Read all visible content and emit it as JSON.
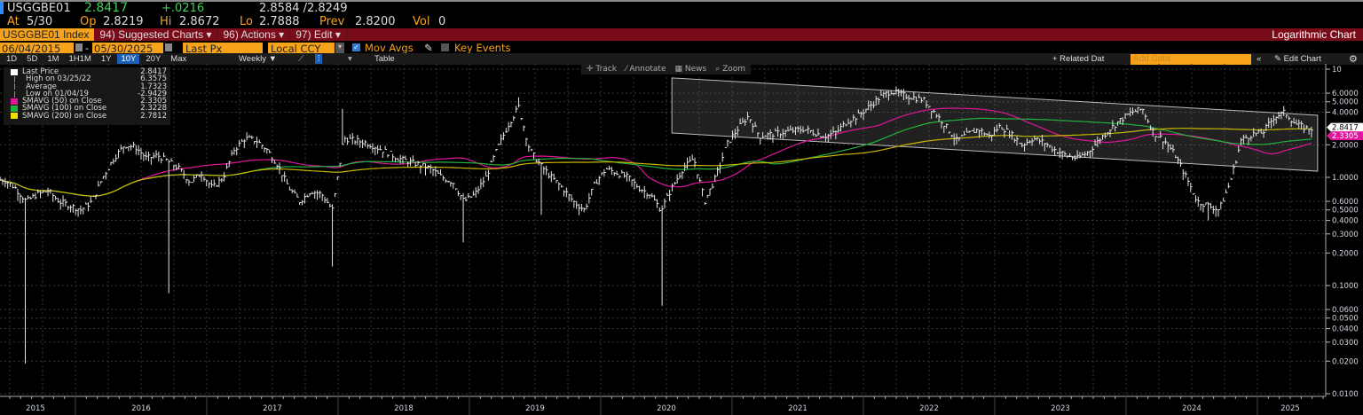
{
  "header": {
    "ticker": "USGGBE01",
    "last": "2.8417",
    "change": "+.0216",
    "bid_ask": "2.8584 /2.8249",
    "at_label": "At",
    "at_date": "5/30",
    "op_label": "Op",
    "op": "2.8219",
    "hi_label": "Hi",
    "hi": "2.8672",
    "lo_label": "Lo",
    "lo": "2.7888",
    "prev_label": "Prev",
    "prev": "2.8200",
    "vol_label": "Vol",
    "vol": "0"
  },
  "menubar": {
    "security": "USGGBE01 Index",
    "suggested": "94) Suggested Charts ▾",
    "actions": "96) Actions ▾",
    "edit": "97) Edit ▾",
    "chart_mode": "Logarithmic Chart"
  },
  "controls": {
    "start_date": "06/04/2015",
    "end_date": "05/30/2025",
    "separator": "-",
    "field": "Last Px",
    "currency": "Local CCY",
    "mov_avgs": "Mov Avgs",
    "key_events": "Key Events"
  },
  "toolbar": {
    "periods": [
      "1D",
      "5D",
      "1M",
      "1H1M",
      "1Y",
      "10Y",
      "20Y",
      "Max"
    ],
    "selected_period": "10Y",
    "frequency": "Weekly ▼",
    "table": "Table",
    "related": "+ Related Dat",
    "add_data_placeholder": "Add Data",
    "collapse": "«",
    "edit_chart": "✎ Edit Chart",
    "settings_icon": "gear-icon"
  },
  "tools": [
    "✛ Track",
    "⁄ Annotate",
    "▦ News",
    "⌕ Zoom"
  ],
  "legend": [
    {
      "name": "Last Price",
      "value": "2.8417",
      "color": "#ffffff"
    },
    {
      "name": "High on 03/25/22",
      "value": "6.3575",
      "color": ""
    },
    {
      "name": "Average",
      "value": "1.7323",
      "color": ""
    },
    {
      "name": "Low on 01/04/19",
      "value": "-2.9429",
      "color": ""
    },
    {
      "name": "SMAVG (50)  on Close",
      "value": "2.3305",
      "color": "#e0169a"
    },
    {
      "name": "SMAVG (100)  on Close",
      "value": "2.3228",
      "color": "#22b33c"
    },
    {
      "name": "SMAVG (200)  on Close",
      "value": "2.7812",
      "color": "#f0e000"
    }
  ],
  "chart_data": {
    "type": "bar",
    "scale": "log",
    "frequency": "weekly",
    "grid": true,
    "legend_position": "top-left",
    "ylim": [
      0.01,
      10
    ],
    "y_ticks": [
      "10",
      "6.0000",
      "5.0000",
      "4.0000",
      "2.0000",
      "1.0000",
      "0.6000",
      "0.5000",
      "0.4000",
      "0.3000",
      "0.2000",
      "0.1000",
      "0.0600",
      "0.0500",
      "0.0400",
      "0.0300",
      "0.0200",
      "0.0100"
    ],
    "x_ticks": [
      "2015",
      "2016",
      "2017",
      "2018",
      "2019",
      "2020",
      "2021",
      "2022",
      "2023",
      "2024",
      "2025"
    ],
    "monthly_start": "2015-06",
    "monthly_close": [
      0.95,
      0.8,
      0.6,
      0.7,
      0.75,
      0.6,
      0.55,
      0.5,
      0.6,
      1.0,
      1.5,
      2.0,
      1.9,
      1.5,
      1.6,
      1.4,
      1.2,
      0.9,
      1.1,
      0.8,
      1.0,
      1.8,
      2.3,
      2.2,
      1.8,
      1.3,
      0.8,
      0.6,
      0.75,
      0.7,
      0.5,
      2.3,
      2.2,
      2.1,
      1.9,
      1.7,
      1.5,
      1.4,
      1.3,
      1.2,
      1.0,
      0.9,
      0.6,
      0.7,
      1.0,
      1.8,
      3.0,
      4.5,
      1.8,
      1.3,
      1.0,
      0.8,
      0.6,
      0.5,
      0.9,
      1.2,
      1.1,
      1.0,
      0.8,
      0.7,
      0.5,
      0.8,
      1.2,
      1.5,
      0.6,
      1.0,
      2.0,
      2.8,
      3.7,
      2.4,
      2.5,
      2.6,
      2.7,
      2.8,
      2.6,
      2.4,
      2.6,
      3.3,
      3.7,
      4.5,
      5.5,
      6.3,
      5.8,
      5.5,
      5.2,
      4.0,
      3.0,
      2.2,
      2.5,
      2.8,
      2.4,
      3.0,
      2.5,
      2.0,
      2.3,
      2.1,
      1.8,
      1.6,
      1.5,
      1.7,
      2.2,
      2.8,
      3.4,
      4.0,
      4.3,
      2.6,
      2.2,
      1.6,
      1.0,
      0.6,
      0.55,
      0.5,
      0.9,
      2.2,
      2.5,
      2.6,
      3.6,
      4.0,
      3.1,
      2.84
    ],
    "low_spikes": [
      {
        "date": "2015-08",
        "low": 0.019
      },
      {
        "date": "2016-09",
        "low": 0.085
      },
      {
        "date": "2017-12",
        "low": 0.15
      },
      {
        "date": "2018-12",
        "low": 0.25
      },
      {
        "date": "2019-07",
        "low": 0.45
      },
      {
        "date": "2020-06",
        "low": 0.065
      },
      {
        "date": "2024-08",
        "low": 0.4
      }
    ],
    "high_spikes": [
      {
        "date": "2018-01",
        "high": 4.3
      },
      {
        "date": "2019-05",
        "high": 5.5
      },
      {
        "date": "2022-03",
        "high": 6.36
      }
    ],
    "series": [
      {
        "name": "SMAVG (50)  on Close",
        "window": 50,
        "color": "#e0169a"
      },
      {
        "name": "SMAVG (100)  on Close",
        "window": 100,
        "color": "#22b33c"
      },
      {
        "name": "SMAVG (200)  on Close",
        "window": 200,
        "color": "#c8b800"
      }
    ],
    "channel": {
      "start": "2020-07",
      "end": "2025-06",
      "upper": [
        8.3,
        3.75
      ],
      "lower": [
        2.57,
        1.14
      ]
    },
    "price_tags": [
      {
        "value": "2.8417",
        "color": "#ffffff"
      },
      {
        "value": "2.3305",
        "color": "#e0169a"
      }
    ]
  }
}
